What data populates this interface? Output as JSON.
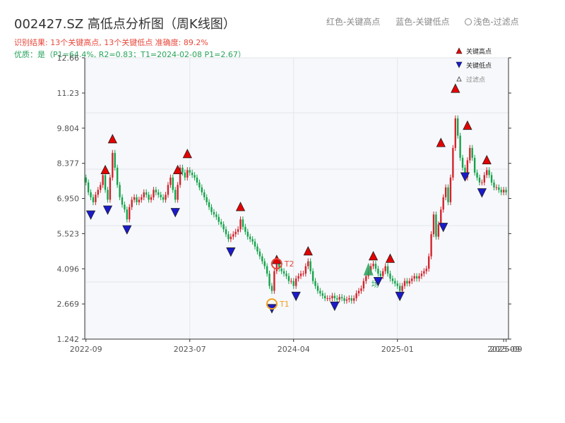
{
  "header": {
    "title": "002427.SZ 高低点分析图（周K线图）",
    "result_line": "识别结果: 13个关键高点, 13个关键低点   准确度: 89.2%",
    "quality_line": "优质：是（P1=64.4%, R2=0.83；T1=2024-02-08 P1=2.67）",
    "legend_top": {
      "red": "红色-关键高点",
      "blue": "蓝色-关键低点",
      "light": "浅色-过滤点"
    }
  },
  "colors": {
    "up": "#d4232b",
    "down": "#16a34a",
    "key_high": "#e60000",
    "key_low": "#1a1acc",
    "t_marker": "#f0a020",
    "t2_marker": "#e8473b",
    "text_green": "#27a35a",
    "text_red": "#e8473b"
  },
  "chart_data": {
    "type": "candlestick",
    "title": "002427.SZ 高低点分析图（周K线图）",
    "y_ticks": [
      "1.242",
      "2.669",
      "4.096",
      "5.523",
      "6.950",
      "8.377",
      "9.804",
      "11.23",
      "12.66"
    ],
    "ylim": [
      1.242,
      12.66
    ],
    "x_ticks": [
      {
        "label": "2022-09",
        "index": 0
      },
      {
        "label": "2023-07",
        "index": 43
      },
      {
        "label": "2024-04",
        "index": 86
      },
      {
        "label": "2025-01",
        "index": 129
      },
      {
        "label": "2025-09",
        "index": 173
      },
      {
        "label": "2025-09",
        "index": 174
      }
    ],
    "legend": {
      "key_high": "关键高点",
      "key_low": "关键低点",
      "filtered": "过滤点"
    },
    "close_series": [
      7.6,
      7.2,
      7.0,
      6.8,
      7.1,
      7.3,
      7.5,
      7.9,
      7.3,
      6.9,
      7.8,
      8.8,
      8.2,
      7.5,
      7.0,
      6.7,
      6.5,
      6.1,
      6.6,
      6.9,
      7.0,
      6.8,
      6.9,
      7.0,
      7.2,
      7.1,
      6.9,
      7.0,
      7.3,
      7.2,
      7.1,
      7.0,
      6.9,
      7.1,
      7.5,
      7.8,
      7.3,
      6.9,
      7.5,
      8.2,
      8.0,
      7.8,
      8.1,
      8.0,
      7.9,
      7.8,
      7.6,
      7.4,
      7.2,
      7.0,
      6.8,
      6.6,
      6.4,
      6.3,
      6.2,
      6.0,
      5.9,
      5.7,
      5.5,
      5.3,
      5.4,
      5.5,
      5.6,
      5.7,
      6.1,
      5.8,
      5.6,
      5.4,
      5.3,
      5.2,
      5.0,
      4.8,
      4.6,
      4.4,
      4.2,
      3.9,
      3.4,
      3.2,
      4.0,
      4.3,
      4.1,
      4.0,
      3.9,
      3.8,
      3.6,
      3.6,
      3.4,
      3.7,
      3.8,
      3.9,
      3.9,
      4.2,
      4.4,
      4.0,
      3.6,
      3.4,
      3.2,
      3.1,
      3.0,
      2.9,
      2.9,
      2.9,
      3.0,
      2.9,
      2.85,
      2.95,
      2.9,
      2.8,
      2.85,
      2.9,
      2.8,
      2.9,
      3.1,
      3.2,
      3.3,
      3.6,
      3.8,
      4.0,
      4.2,
      4.3,
      4.1,
      3.9,
      3.8,
      4.0,
      4.2,
      3.9,
      3.7,
      3.6,
      3.5,
      3.4,
      3.2,
      3.4,
      3.6,
      3.5,
      3.6,
      3.7,
      3.8,
      3.7,
      3.8,
      3.9,
      4.0,
      4.1,
      4.6,
      5.5,
      6.3,
      5.4,
      5.9,
      6.5,
      7.0,
      7.4,
      6.8,
      7.8,
      9.0,
      10.2,
      9.5,
      8.6,
      8.2,
      7.8,
      8.5,
      9.0,
      8.6,
      8.0,
      7.8,
      7.6,
      7.6,
      7.9,
      8.1,
      7.9,
      7.6,
      7.4,
      7.4,
      7.3,
      7.2,
      7.3,
      7.2
    ],
    "key_highs": [
      {
        "index": 8,
        "price": 7.95
      },
      {
        "index": 11,
        "price": 9.2
      },
      {
        "index": 38,
        "price": 7.95
      },
      {
        "index": 42,
        "price": 8.6
      },
      {
        "index": 64,
        "price": 6.45
      },
      {
        "index": 79,
        "price": 4.3
      },
      {
        "index": 92,
        "price": 4.65
      },
      {
        "index": 119,
        "price": 4.45
      },
      {
        "index": 126,
        "price": 4.35
      },
      {
        "index": 147,
        "price": 9.05
      },
      {
        "index": 153,
        "price": 11.25
      },
      {
        "index": 158,
        "price": 9.75
      },
      {
        "index": 166,
        "price": 8.35
      }
    ],
    "key_lows": [
      {
        "index": 2,
        "price": 6.45
      },
      {
        "index": 9,
        "price": 6.65
      },
      {
        "index": 17,
        "price": 5.85
      },
      {
        "index": 37,
        "price": 6.55
      },
      {
        "index": 60,
        "price": 4.95
      },
      {
        "index": 77,
        "price": 2.65
      },
      {
        "index": 87,
        "price": 3.15
      },
      {
        "index": 103,
        "price": 2.75
      },
      {
        "index": 121,
        "price": 3.75
      },
      {
        "index": 130,
        "price": 3.15
      },
      {
        "index": 148,
        "price": 5.95
      },
      {
        "index": 157,
        "price": 8.0
      },
      {
        "index": 164,
        "price": 7.35
      }
    ],
    "t1": {
      "label": "T1",
      "index": 77,
      "price": 2.67
    },
    "t2": {
      "label": "T2",
      "index": 79,
      "price": 4.3
    },
    "field_label": {
      "label": "场",
      "index": 117,
      "price": 4.0
    }
  }
}
